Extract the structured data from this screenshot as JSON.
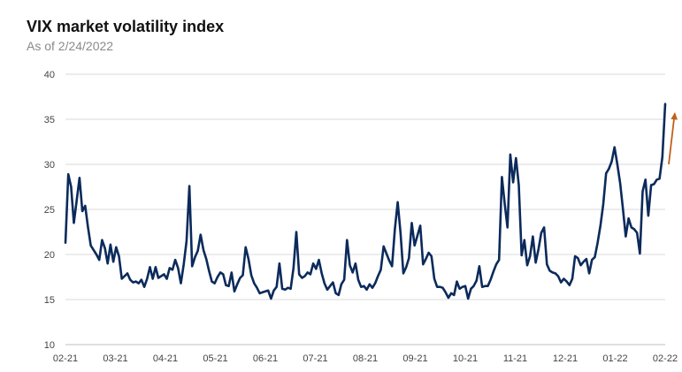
{
  "colors": {
    "line": "#0b2a5b",
    "arrow": "#c0601c",
    "grid": "#d9d9d9",
    "axis": "#bfbfbf"
  },
  "chart_data": {
    "type": "line",
    "title": "VIX market volatility index",
    "subtitle": "As of 2/24/2022",
    "xlabel": "",
    "ylabel": "",
    "ylim": [
      10,
      40
    ],
    "yticks": [
      10,
      15,
      20,
      25,
      30,
      35,
      40
    ],
    "xtick_labels": [
      "02-21",
      "03-21",
      "04-21",
      "05-21",
      "06-21",
      "07-21",
      "08-21",
      "09-21",
      "10-21",
      "11-21",
      "12-21",
      "01-22",
      "02-22"
    ],
    "grid": "horizontal",
    "annotation": {
      "type": "upward-arrow",
      "from_y": 30,
      "to_y": 35.8
    },
    "series": [
      {
        "values": [
          21.3,
          28.9,
          27.5,
          23.5,
          26.0,
          28.5,
          24.8,
          25.4,
          23.0,
          21.0,
          20.5,
          20.0,
          19.4,
          21.6,
          20.7,
          19.0,
          21.1,
          19.2,
          20.8,
          19.8,
          17.3,
          17.6,
          17.9,
          17.2,
          16.9,
          17.0,
          16.8,
          17.2,
          16.4,
          17.3,
          18.6,
          17.3,
          18.6,
          17.4,
          17.6,
          17.8,
          17.3,
          18.5,
          18.3,
          19.4,
          18.5,
          16.8,
          18.9,
          21.5,
          27.6,
          18.7,
          19.7,
          20.4,
          22.2,
          20.5,
          19.5,
          18.2,
          17.0,
          16.8,
          17.5,
          18.0,
          17.8,
          16.6,
          16.5,
          18.0,
          15.9,
          16.7,
          17.4,
          17.7,
          20.8,
          19.5,
          17.7,
          16.8,
          16.3,
          15.7,
          15.8,
          15.9,
          16.0,
          15.1,
          16.0,
          16.4,
          19.0,
          16.2,
          16.1,
          16.3,
          16.2,
          18.5,
          22.5,
          17.8,
          17.4,
          17.6,
          18.0,
          17.8,
          19.0,
          18.4,
          19.4,
          17.9,
          16.8,
          16.1,
          16.5,
          16.9,
          15.7,
          15.5,
          16.7,
          17.2,
          21.6,
          18.8,
          18.0,
          19.0,
          17.2,
          16.4,
          16.5,
          16.1,
          16.7,
          16.3,
          16.8,
          17.6,
          18.3,
          20.9,
          20.1,
          19.3,
          18.7,
          22.8,
          25.8,
          22.4,
          17.9,
          18.6,
          19.6,
          23.5,
          21.0,
          22.1,
          23.2,
          18.9,
          19.5,
          20.2,
          19.8,
          17.3,
          16.4,
          16.4,
          16.3,
          15.8,
          15.2,
          15.7,
          15.5,
          17.0,
          16.2,
          16.4,
          16.5,
          15.1,
          16.2,
          16.5,
          17.1,
          18.7,
          16.4,
          16.5,
          16.5,
          17.2,
          18.1,
          18.9,
          19.4,
          28.6,
          25.6,
          23.0,
          31.1,
          28.0,
          30.7,
          27.7,
          19.9,
          21.6,
          18.8,
          19.8,
          22.0,
          19.1,
          20.6,
          22.4,
          23.0,
          18.9,
          18.2,
          18.0,
          17.9,
          17.6,
          16.9,
          17.3,
          17.0,
          16.6,
          17.3,
          19.8,
          19.6,
          18.8,
          19.2,
          19.5,
          17.9,
          19.4,
          19.7,
          21.3,
          23.2,
          25.6,
          29.0,
          29.5,
          30.3,
          31.9,
          30.0,
          27.9,
          25.0,
          22.0,
          24.0,
          23.0,
          22.8,
          22.4,
          20.1,
          27.0,
          28.3,
          24.3,
          27.7,
          27.8,
          28.3,
          28.4,
          30.8,
          36.7
        ]
      }
    ]
  }
}
